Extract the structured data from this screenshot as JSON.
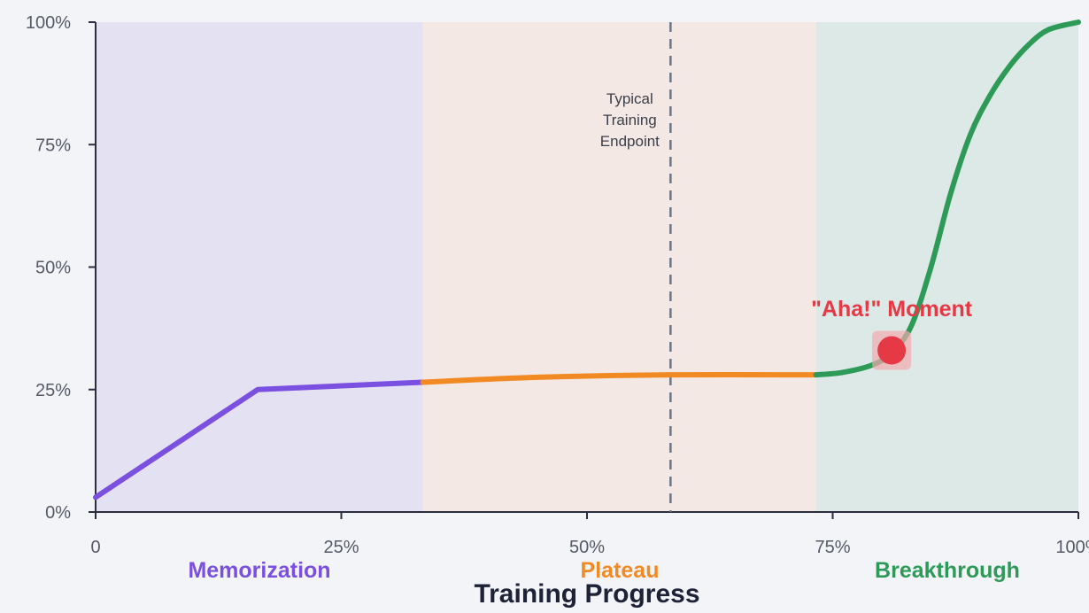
{
  "chart_data": {
    "type": "line",
    "title": "",
    "xlabel": "Training Progress",
    "ylabel": "",
    "xlim": [
      0,
      100
    ],
    "ylim": [
      0,
      100
    ],
    "x_ticks": [
      "0",
      "25%",
      "50%",
      "75%",
      "100%"
    ],
    "y_ticks": [
      "0%",
      "25%",
      "50%",
      "75%",
      "100%"
    ],
    "grid": false,
    "phases": [
      {
        "name": "Memorization",
        "x_range": [
          0,
          33.3
        ],
        "color": "#7b4fe0",
        "fill": "#e4e1f2"
      },
      {
        "name": "Plateau",
        "x_range": [
          33.3,
          73.3
        ],
        "color": "#f28a24",
        "fill": "#f3e8e3"
      },
      {
        "name": "Breakthrough",
        "x_range": [
          73.3,
          100
        ],
        "color": "#2e9a58",
        "fill": "#dde9e6"
      }
    ],
    "series": [
      {
        "phase": "Memorization",
        "color": "#7b4fe0",
        "points": [
          [
            0,
            3
          ],
          [
            16.5,
            25
          ],
          [
            33.3,
            26.5
          ]
        ]
      },
      {
        "phase": "Plateau",
        "color": "#f28a24",
        "points": [
          [
            33.3,
            26.5
          ],
          [
            45,
            27.5
          ],
          [
            58.5,
            28
          ],
          [
            73.3,
            28
          ]
        ]
      },
      {
        "phase": "Breakthrough",
        "color": "#2e9a58",
        "points": [
          [
            73.3,
            28
          ],
          [
            76,
            28.5
          ],
          [
            79,
            30
          ],
          [
            81,
            32.5
          ],
          [
            83,
            38
          ],
          [
            85,
            50
          ],
          [
            87,
            65
          ],
          [
            89,
            77
          ],
          [
            91,
            85
          ],
          [
            93,
            91
          ],
          [
            95,
            95.5
          ],
          [
            97,
            98.5
          ],
          [
            100,
            100
          ]
        ]
      }
    ],
    "vline": {
      "x": 58.5,
      "label_lines": [
        "Typical",
        "Training",
        "Endpoint"
      ],
      "color": "#6c7686"
    },
    "annotation": {
      "text": "\"Aha!\" Moment",
      "x": 81,
      "y": 33
    }
  }
}
